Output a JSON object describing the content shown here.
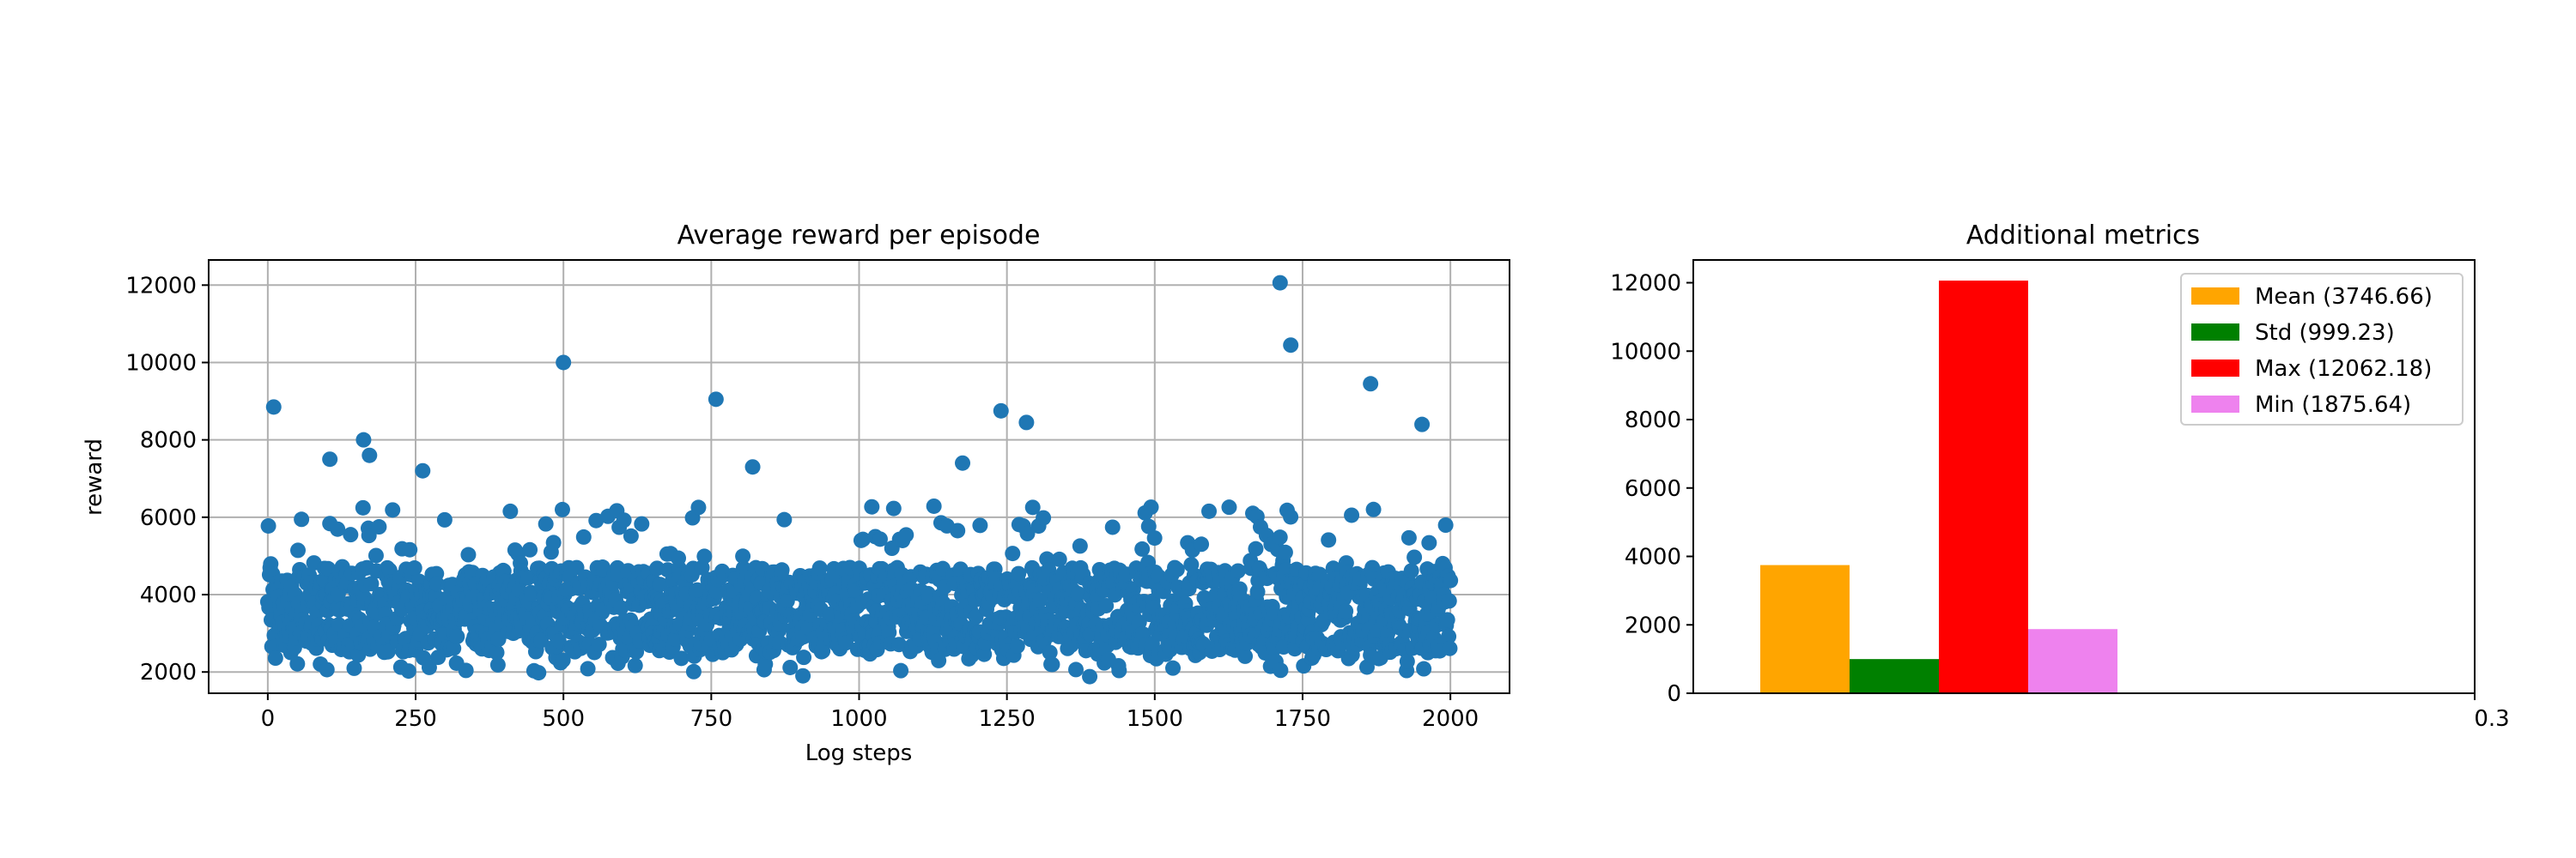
{
  "chart_data": [
    {
      "type": "scatter",
      "title": "Average reward per episode",
      "xlabel": "Log steps",
      "ylabel": "reward",
      "xlim": [
        -100,
        2100
      ],
      "ylim": [
        1450,
        12650
      ],
      "xticks": [
        0,
        250,
        500,
        750,
        1000,
        1250,
        1500,
        1750,
        2000
      ],
      "xtick_labels": [
        "0",
        "250",
        "500",
        "750",
        "1000",
        "1250",
        "1500",
        "1750",
        "2000"
      ],
      "yticks": [
        2000,
        4000,
        6000,
        8000,
        10000,
        12000
      ],
      "ytick_labels": [
        "2000",
        "4000",
        "6000",
        "8000",
        "10000",
        "12000"
      ],
      "grid": true,
      "color": "#1f77b4",
      "n_points": 2000,
      "notable_points": [
        {
          "x": 10,
          "y": 8850
        },
        {
          "x": 105,
          "y": 7500
        },
        {
          "x": 162,
          "y": 8000
        },
        {
          "x": 172,
          "y": 7600
        },
        {
          "x": 262,
          "y": 7200
        },
        {
          "x": 500,
          "y": 10000
        },
        {
          "x": 758,
          "y": 9050
        },
        {
          "x": 820,
          "y": 7300
        },
        {
          "x": 1175,
          "y": 7400
        },
        {
          "x": 1240,
          "y": 8750
        },
        {
          "x": 1283,
          "y": 8450
        },
        {
          "x": 1712,
          "y": 12060
        },
        {
          "x": 1730,
          "y": 10450
        },
        {
          "x": 1865,
          "y": 9450
        },
        {
          "x": 1952,
          "y": 8400
        },
        {
          "x": 905,
          "y": 1900
        },
        {
          "x": 1390,
          "y": 1880
        },
        {
          "x": 458,
          "y": 1980
        }
      ]
    },
    {
      "type": "bar",
      "title": "Additional metrics",
      "categories": [
        "Mean",
        "Std",
        "Max",
        "Min"
      ],
      "values": [
        3746.66,
        999.23,
        12062.18,
        1875.64
      ],
      "colors": [
        "#ffa500",
        "#008000",
        "#ff0000",
        "#ee82ee"
      ],
      "legend": [
        "Mean (3746.66)",
        "Std (999.23)",
        "Max (12062.18)",
        "Min (1875.64)"
      ],
      "legend_position": "upper right",
      "xlim": [
        -0.05,
        0.3
      ],
      "ylim": [
        0,
        12665
      ],
      "xticks": [
        0.3
      ],
      "xtick_labels": [
        "0.3"
      ],
      "yticks": [
        0,
        2000,
        4000,
        6000,
        8000,
        10000,
        12000
      ],
      "ytick_labels": [
        "0",
        "2000",
        "4000",
        "6000",
        "8000",
        "10000",
        "12000"
      ],
      "bar_width": 0.04,
      "grid": false
    }
  ]
}
